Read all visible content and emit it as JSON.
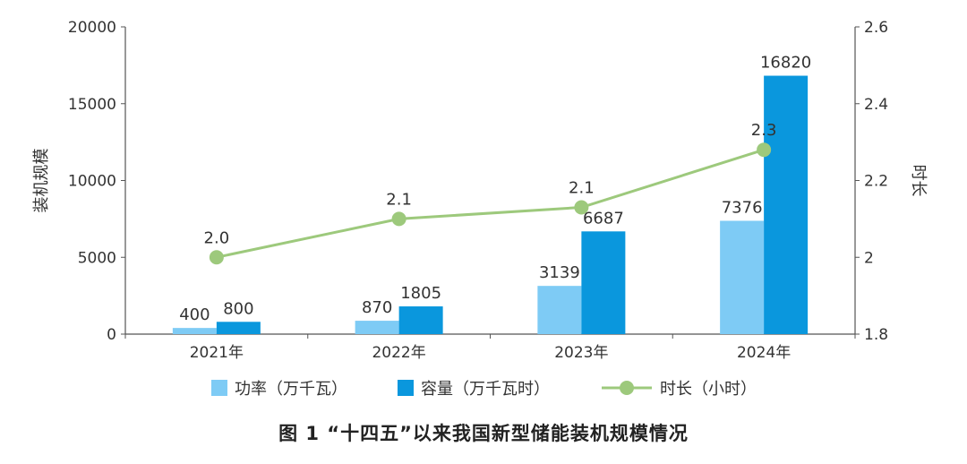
{
  "chart_data": {
    "type": "bar",
    "title": "图 1 “十四五”以来我国新型储能装机规模情况",
    "categories": [
      "2021年",
      "2022年",
      "2023年",
      "2024年"
    ],
    "ylabel": "装机规模",
    "y2label": "时长",
    "ylim": [
      0,
      20000
    ],
    "y2lim": [
      1.8,
      2.6
    ],
    "yticks": [
      "0",
      "5000",
      "10000",
      "15000",
      "20000"
    ],
    "y2ticks": [
      "1.8",
      "2",
      "2.2",
      "2.4",
      "2.6"
    ],
    "grid": false,
    "legend_position": "bottom",
    "series": [
      {
        "name": "功率（万千瓦）",
        "kind": "bar",
        "axis": "left",
        "color": "#7ecbf5",
        "values": [
          400,
          870,
          3139,
          7376
        ],
        "labels": [
          "400",
          "870",
          "3139",
          "7376"
        ]
      },
      {
        "name": "容量（万千瓦时）",
        "kind": "bar",
        "axis": "left",
        "color": "#0a97dd",
        "values": [
          800,
          1805,
          6687,
          16820
        ],
        "labels": [
          "800",
          "1805",
          "6687",
          "16820"
        ]
      },
      {
        "name": "时长（小时）",
        "kind": "line",
        "axis": "right",
        "color": "#9dc97c",
        "values": [
          2.0,
          2.1,
          2.13,
          2.28
        ],
        "labels": [
          "2.0",
          "2.1",
          "2.1",
          "2.3"
        ]
      }
    ]
  }
}
